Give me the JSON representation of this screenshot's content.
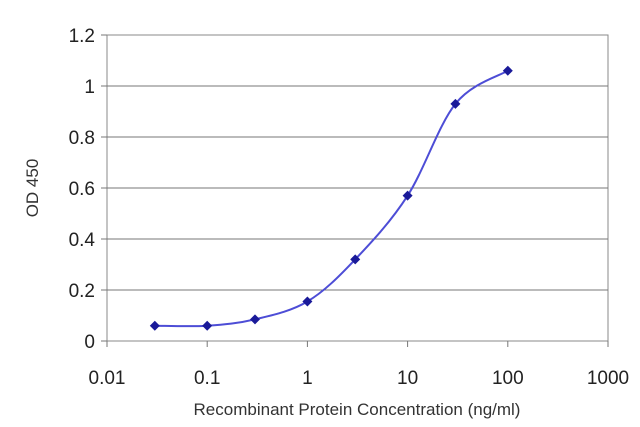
{
  "chart_data": {
    "type": "line",
    "title": "",
    "xlabel": "Recombinant Protein Concentration (ng/ml)",
    "ylabel": "OD 450",
    "x_scale": "log",
    "xlim": [
      0.01,
      1000
    ],
    "ylim": [
      0,
      1.2
    ],
    "x_ticks": [
      "0.01",
      "0.1",
      "1",
      "10",
      "100",
      "1000"
    ],
    "y_ticks": [
      "0",
      "0.2",
      "0.4",
      "0.6",
      "0.8",
      "1",
      "1.2"
    ],
    "grid": "horizontal",
    "legend": "none",
    "series": [
      {
        "x": [
          0.03,
          0.1,
          0.3,
          1,
          3,
          10,
          30,
          100
        ],
        "y": [
          0.06,
          0.06,
          0.085,
          0.155,
          0.32,
          0.57,
          0.93,
          1.06
        ],
        "color": "#1a1a99",
        "line_color": "#4d4dd6",
        "marker": "diamond"
      }
    ]
  }
}
